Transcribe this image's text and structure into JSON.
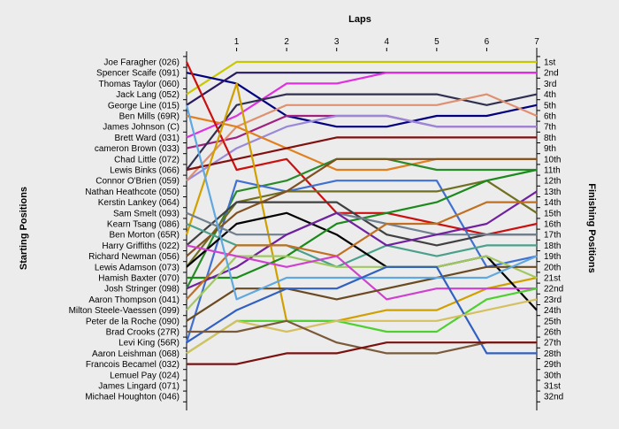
{
  "chart_data": {
    "type": "line",
    "title": "Laps",
    "xlabel": "Laps",
    "ylabel_left": "Starting Positions",
    "ylabel_right": "Finishing Positions",
    "x": [
      0,
      1,
      2,
      3,
      4,
      5,
      6,
      7
    ],
    "x_tick_labels": [
      "1",
      "2",
      "3",
      "4",
      "5",
      "6",
      "7"
    ],
    "y_range": [
      1,
      32
    ],
    "grid": false,
    "legend": "none",
    "starting_positions": [
      "Joe Faragher (026)",
      "Spencer Scaife (091)",
      "Thomas Taylor (060)",
      "Jack Lang (052)",
      "George Line (015)",
      "Ben Mills (69R)",
      "James Johnson (C)",
      "Brett Ward (031)",
      "cameron Brown (033)",
      "Chad Little (072)",
      "Lewis Binks (066)",
      "Connor O'Brien (059)",
      "Nathan Heathcote (050)",
      "Kerstin Lankey (064)",
      "Sam Smelt (093)",
      "Kearn Tsang (086)",
      "Ben Morton (65R)",
      "Harry Griffiths (022)",
      "Richard Newman (056)",
      "Lewis Adamson (073)",
      "Hamish Baxter (070)",
      "Josh Stringer (098)",
      "Aaron Thompson (041)",
      "Milton Steele-Vaessen (099)",
      "Peter de la Roche (090)",
      "Brad Crooks (27R)",
      "Levi King (56R)",
      "Aaron Leishman (068)",
      "Francois Becamel (032)",
      "Lemuel Pay (024)",
      "James Lingard (071)",
      "Michael Houghton (046)"
    ],
    "finishing_labels": [
      "1st",
      "2nd",
      "3rd",
      "4th",
      "5th",
      "6th",
      "7th",
      "8th",
      "9th",
      "10th",
      "11th",
      "12th",
      "13th",
      "14th",
      "15th",
      "16th",
      "17th",
      "18th",
      "19th",
      "20th",
      "21st",
      "22nd",
      "23rd",
      "24th",
      "25th",
      "26th",
      "27th",
      "28th",
      "29th",
      "30th",
      "31st",
      "32nd"
    ],
    "series": [
      {
        "color": "#c8c800",
        "values": [
          4,
          1,
          1,
          1,
          1,
          1,
          1,
          1
        ]
      },
      {
        "color": "#000080",
        "values": [
          2,
          3,
          6,
          7,
          7,
          6,
          6,
          5
        ]
      },
      {
        "color": "#2a1a5e",
        "values": [
          5,
          2,
          2,
          2,
          2,
          2,
          2,
          2
        ]
      },
      {
        "color": "#e030e0",
        "values": [
          8,
          6,
          3,
          3,
          2,
          2,
          2,
          2
        ]
      },
      {
        "color": "#a02080",
        "values": [
          9,
          8,
          6,
          6,
          6,
          7,
          7,
          7
        ]
      },
      {
        "color": "#303050",
        "values": [
          11,
          5,
          4,
          4,
          4,
          4,
          5,
          4
        ]
      },
      {
        "color": "#9a88d8",
        "values": [
          12,
          9,
          7,
          6,
          6,
          7,
          7,
          7
        ]
      },
      {
        "color": "#e09070",
        "values": [
          12,
          7,
          5,
          5,
          5,
          5,
          4,
          6
        ]
      },
      {
        "color": "#e08020",
        "values": [
          6,
          7,
          9,
          11,
          11,
          10,
          10,
          10
        ]
      },
      {
        "color": "#cc1010",
        "values": [
          1,
          11,
          10,
          15,
          15,
          16,
          17,
          16
        ]
      },
      {
        "color": "#801010",
        "values": [
          11,
          10,
          9,
          8,
          8,
          8,
          8,
          8
        ]
      },
      {
        "color": "#2a8a2a",
        "values": [
          22,
          13,
          12,
          10,
          10,
          11,
          11,
          11
        ]
      },
      {
        "color": "#4070d0",
        "values": [
          27,
          12,
          13,
          12,
          12,
          12,
          20,
          19
        ]
      },
      {
        "color": "#707020",
        "values": [
          20,
          14,
          13,
          13,
          13,
          13,
          12,
          15
        ]
      },
      {
        "color": "#d0a000",
        "values": [
          17,
          3,
          25,
          25,
          24,
          24,
          22,
          21
        ]
      },
      {
        "color": "#404040",
        "values": [
          18,
          14,
          14,
          14,
          17,
          18,
          17,
          17
        ]
      },
      {
        "color": "#805020",
        "values": [
          19,
          15,
          13,
          10,
          10,
          10,
          10,
          10
        ]
      },
      {
        "color": "#4aa08a",
        "values": [
          16,
          18,
          18,
          20,
          18,
          19,
          18,
          18
        ]
      },
      {
        "color": "#000000",
        "values": [
          20,
          16,
          15,
          17,
          20,
          20,
          19,
          24
        ]
      },
      {
        "color": "#1a8a1a",
        "values": [
          21,
          21,
          19,
          16,
          15,
          14,
          12,
          11
        ]
      },
      {
        "color": "#708090",
        "values": [
          15,
          17,
          17,
          15,
          16,
          17,
          17,
          17
        ]
      },
      {
        "color": "#7020a0",
        "values": [
          22,
          20,
          17,
          15,
          18,
          17,
          16,
          13
        ]
      },
      {
        "color": "#c07020",
        "values": [
          23,
          18,
          18,
          19,
          16,
          16,
          14,
          14
        ]
      },
      {
        "color": "#a0c860",
        "values": [
          24,
          19,
          19,
          20,
          20,
          20,
          19,
          21
        ]
      },
      {
        "color": "#d040d0",
        "values": [
          18,
          19,
          20,
          19,
          23,
          22,
          22,
          22
        ]
      },
      {
        "color": "#6a4a20",
        "values": [
          25,
          22,
          22,
          23,
          22,
          21,
          20,
          20
        ]
      },
      {
        "color": "#60a8e0",
        "values": [
          5,
          23,
          21,
          21,
          21,
          21,
          21,
          19
        ]
      },
      {
        "color": "#50d030",
        "values": [
          28,
          25,
          25,
          25,
          26,
          26,
          23,
          22
        ]
      },
      {
        "color": "#3060c0",
        "values": [
          27,
          24,
          22,
          22,
          20,
          20,
          28,
          28
        ]
      },
      {
        "color": "#d4c060",
        "values": [
          28,
          25,
          26,
          25,
          25,
          25,
          24,
          23
        ]
      },
      {
        "color": "#7a5a3a",
        "values": [
          26,
          26,
          25,
          27,
          28,
          28,
          27,
          27
        ]
      },
      {
        "color": "#7a1010",
        "values": [
          29,
          29,
          28,
          28,
          27,
          27,
          27,
          27
        ]
      }
    ]
  }
}
